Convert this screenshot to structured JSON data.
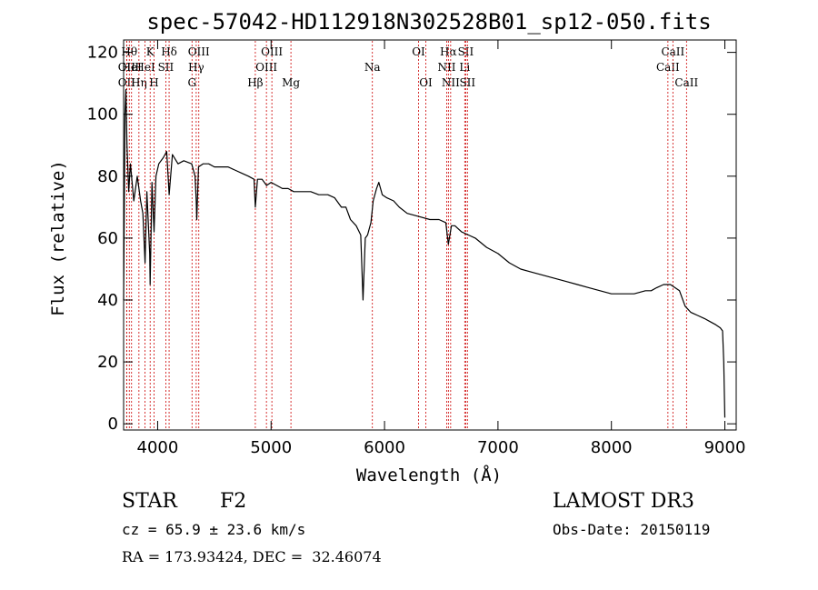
{
  "chart_data": {
    "type": "line",
    "title": "spec-57042-HD112918N302528B01_sp12-050.fits",
    "xlabel": "Wavelength (Å)",
    "ylabel": "Flux (relative)",
    "xlim": [
      3700,
      9100
    ],
    "ylim": [
      -2,
      124
    ],
    "x_ticks": [
      4000,
      5000,
      6000,
      7000,
      8000,
      9000
    ],
    "y_ticks": [
      0,
      20,
      40,
      60,
      80,
      100,
      120
    ],
    "series": [
      {
        "name": "spectrum",
        "x": [
          3700,
          3712,
          3720,
          3730,
          3745,
          3760,
          3790,
          3820,
          3850,
          3870,
          3889,
          3905,
          3930,
          3934,
          3950,
          3968,
          3985,
          4010,
          4050,
          4080,
          4101,
          4130,
          4180,
          4230,
          4300,
          4330,
          4340,
          4345,
          4360,
          4400,
          4450,
          4500,
          4560,
          4620,
          4680,
          4740,
          4800,
          4850,
          4861,
          4880,
          4920,
          4960,
          5000,
          5050,
          5100,
          5150,
          5200,
          5270,
          5350,
          5420,
          5500,
          5560,
          5620,
          5660,
          5700,
          5750,
          5790,
          5810,
          5830,
          5850,
          5880,
          5900,
          5930,
          5950,
          5980,
          6020,
          6080,
          6130,
          6200,
          6300,
          6400,
          6480,
          6540,
          6563,
          6590,
          6620,
          6680,
          6740,
          6800,
          6900,
          7000,
          7100,
          7200,
          7300,
          7400,
          7500,
          7600,
          7700,
          7800,
          7900,
          8000,
          8100,
          8200,
          8300,
          8350,
          8400,
          8460,
          8520,
          8560,
          8600,
          8650,
          8700,
          8760,
          8820,
          8870,
          8920,
          8960,
          8980,
          8990,
          9000
        ],
        "values": [
          40,
          100,
          108,
          90,
          75,
          84,
          72,
          80,
          72,
          68,
          52,
          75,
          55,
          45,
          78,
          62,
          80,
          84,
          86,
          88,
          74,
          87,
          84,
          85,
          84,
          80,
          72,
          66,
          83,
          84,
          84,
          83,
          83,
          83,
          82,
          81,
          80,
          79,
          70,
          79,
          79,
          77,
          78,
          77,
          76,
          76,
          75,
          75,
          75,
          74,
          74,
          73,
          70,
          70,
          66,
          64,
          61,
          40,
          60,
          61,
          65,
          72,
          76,
          78,
          74,
          73,
          72,
          70,
          68,
          67,
          66,
          66,
          65,
          58,
          64,
          64,
          62,
          61,
          60,
          57,
          55,
          52,
          50,
          49,
          48,
          47,
          46,
          45,
          44,
          43,
          42,
          42,
          42,
          43,
          43,
          44,
          45,
          45,
          44,
          43,
          38,
          36,
          35,
          34,
          33,
          32,
          31,
          30,
          20,
          2
        ]
      }
    ],
    "line_markers": [
      {
        "wave": 3727,
        "label": "OII",
        "row": 2
      },
      {
        "wave": 3727,
        "label": "OII",
        "row": 3
      },
      {
        "wave": 3750,
        "label": "Hθ",
        "row": 1
      },
      {
        "wave": 3770,
        "label": "HeI",
        "row": 2
      },
      {
        "wave": 3835,
        "label": "Hη",
        "row": 3
      },
      {
        "wave": 3889,
        "label": "HeI",
        "row": 2
      },
      {
        "wave": 3934,
        "label": "K",
        "row": 1
      },
      {
        "wave": 3968,
        "label": "H",
        "row": 3
      },
      {
        "wave": 4072,
        "label": "SII",
        "row": 2
      },
      {
        "wave": 4101,
        "label": "Hδ",
        "row": 1
      },
      {
        "wave": 4303,
        "label": "G",
        "row": 3
      },
      {
        "wave": 4340,
        "label": "Hγ",
        "row": 2
      },
      {
        "wave": 4363,
        "label": "OIII",
        "row": 1
      },
      {
        "wave": 4861,
        "label": "Hβ",
        "row": 3
      },
      {
        "wave": 4959,
        "label": "OIII",
        "row": 2
      },
      {
        "wave": 5007,
        "label": "OIII",
        "row": 1
      },
      {
        "wave": 5175,
        "label": "Mg",
        "row": 3
      },
      {
        "wave": 5893,
        "label": "Na",
        "row": 2
      },
      {
        "wave": 6300,
        "label": "OI",
        "row": 1
      },
      {
        "wave": 6364,
        "label": "OI",
        "row": 3
      },
      {
        "wave": 6548,
        "label": "NII",
        "row": 2
      },
      {
        "wave": 6563,
        "label": "Hα",
        "row": 1
      },
      {
        "wave": 6583,
        "label": "NII",
        "row": 3
      },
      {
        "wave": 6707,
        "label": "Li",
        "row": 2
      },
      {
        "wave": 6716,
        "label": "SII",
        "row": 1
      },
      {
        "wave": 6731,
        "label": "SII",
        "row": 3
      },
      {
        "wave": 8498,
        "label": "CaII",
        "row": 2
      },
      {
        "wave": 8542,
        "label": "CaII",
        "row": 1
      },
      {
        "wave": 8662,
        "label": "CaII",
        "row": 3
      }
    ],
    "colors": {
      "axis": "#000000",
      "spectrum": "#000000",
      "marker": "#cc0000"
    }
  },
  "info": {
    "object_type": "STAR",
    "subclass": "F2",
    "survey": "LAMOST DR3",
    "cz": "cz = 65.9 ± 23.6 km/s",
    "obs_date": "Obs-Date: 20150119",
    "coords": "RA = 173.93424, DEC =  32.46074"
  }
}
